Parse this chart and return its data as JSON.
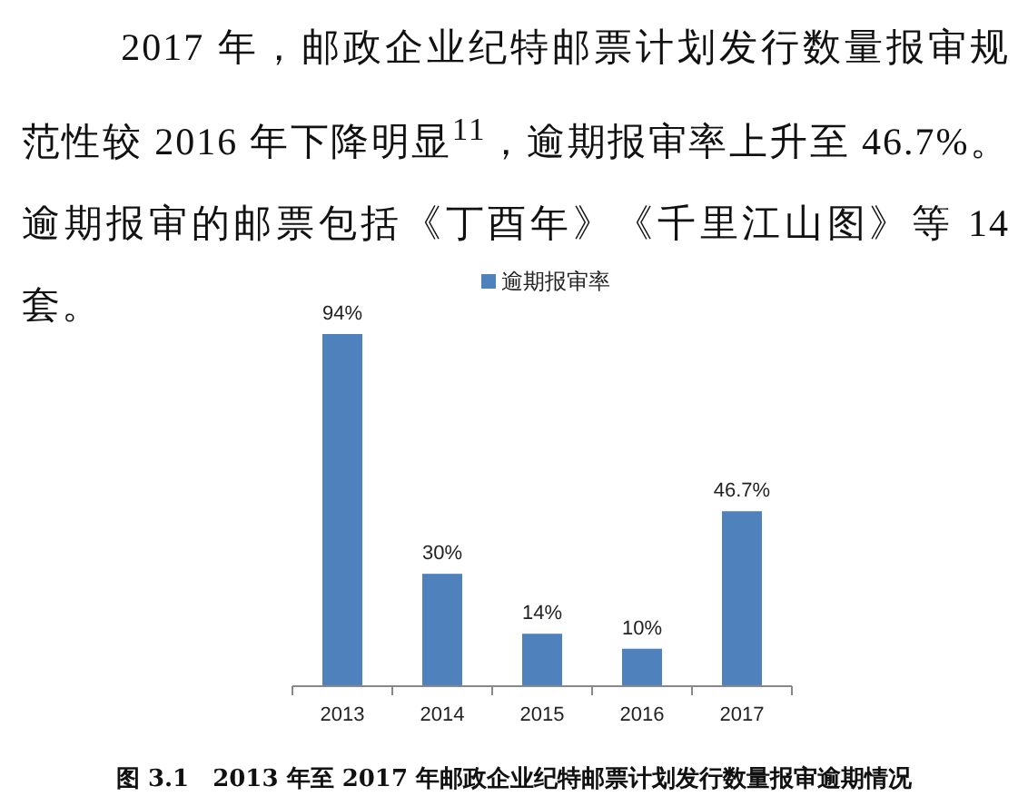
{
  "chart_data": {
    "type": "bar",
    "categories": [
      "2013",
      "2014",
      "2015",
      "2016",
      "2017"
    ],
    "series": [
      {
        "name": "逾期报审率",
        "color": "#4f81bd",
        "values": [
          94,
          30,
          14,
          10,
          46.7
        ],
        "value_labels": [
          "94%",
          "30%",
          "14%",
          "10%",
          "46.7%"
        ]
      }
    ],
    "legend": "top",
    "annotations": [
      "2017 年，邮政企业纪特邮票计划发行数量报审规范性较 2016 年下降明显$^{11}$，逾期报审率上升至 46.7%。逾期报审的邮票包括《丁酉年》《千里江山图》等 14 套。",
      "图 3.1　2013 年至 2017 年邮政企业纪特邮票计划发行数量报审逾期情况"
    ]
  }
}
